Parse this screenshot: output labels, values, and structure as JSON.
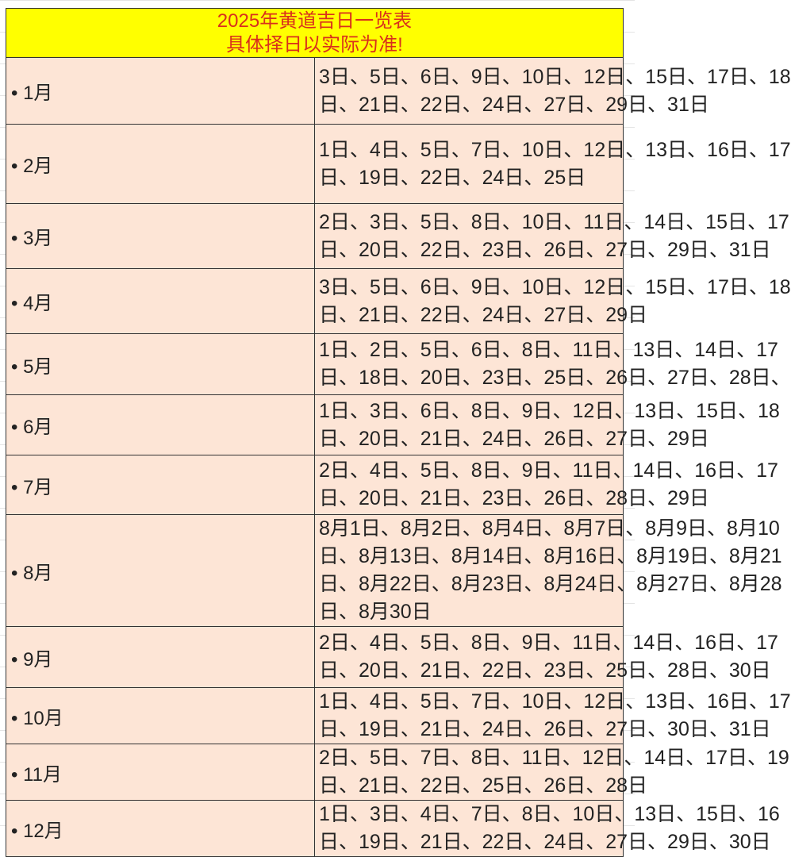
{
  "header": {
    "title": "2025年黄道吉日一览表",
    "subtitle": "具体择日以实际为准!"
  },
  "colors": {
    "header_bg": "#ffff00",
    "header_text": "#d9301c",
    "cell_bg": "#fde5d6"
  },
  "rows": [
    {
      "month": "• 1月",
      "lines": [
        "3日、5日、6日、9日、10日、12日、15日、17日、18",
        "日、21日、22日、24日、27日、29日、31日"
      ]
    },
    {
      "month": "• 2月",
      "lines": [
        "1日、4日、5日、7日、10日、12日、13日、16日、17",
        "日、19日、22日、24日、25日"
      ]
    },
    {
      "month": "• 3月",
      "lines": [
        "2日、3日、5日、8日、10日、11日、14日、15日、17",
        "日、20日、22日、23日、26日、27日、29日、31日"
      ]
    },
    {
      "month": "• 4月",
      "lines": [
        "3日、5日、6日、9日、10日、12日、15日、17日、18",
        "日、21日、22日、24日、27日、29日"
      ]
    },
    {
      "month": "• 5月",
      "lines": [
        "1日、2日、5日、6日、8日、11日、13日、14日、17",
        "日、18日、20日、23日、25日、26日、27日、28日、"
      ]
    },
    {
      "month": "• 6月",
      "lines": [
        "1日、3日、6日、8日、9日、12日、13日、15日、18",
        "日、20日、21日、24日、26日、27日、29日"
      ]
    },
    {
      "month": "• 7月",
      "lines": [
        "2日、4日、5日、8日、9日、11日、14日、16日、17",
        "日、20日、21日、23日、26日、28日、29日"
      ]
    },
    {
      "month": "• 8月",
      "lines": [
        "8月1日、8月2日、8月4日、8月7日、8月9日、8月10",
        "日、8月13日、8月14日、8月16日、8月19日、8月21",
        "日、8月22日、8月23日、8月24日、8月27日、8月28",
        "日、8月30日"
      ]
    },
    {
      "month": "• 9月",
      "lines": [
        "2日、4日、5日、8日、9日、11日、14日、16日、17",
        "日、20日、21日、22日、23日、25日、28日、30日"
      ]
    },
    {
      "month": "• 10月",
      "lines": [
        "1日、4日、5日、7日、10日、12日、13日、16日、17",
        "日、19日、21日、24日、26日、27日、30日、31日"
      ]
    },
    {
      "month": "• 11月",
      "lines": [
        "2日、5日、7日、8日、11日、12日、14日、17日、19",
        "日、21日、22日、25日、26日、28日"
      ]
    },
    {
      "month": "• 12月",
      "lines": [
        "1日、3日、4日、7日、8日、10日、13日、15日、16",
        "日、19日、21日、22日、24日、27日、29日、30日"
      ]
    }
  ]
}
